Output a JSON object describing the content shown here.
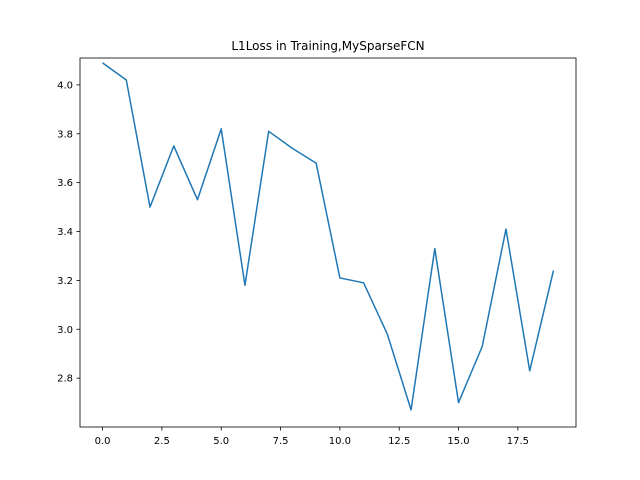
{
  "chart_data": {
    "type": "line",
    "title": "L1Loss in Training,MySparseFCN",
    "xlabel": "",
    "ylabel": "",
    "xlim": [
      -0.95,
      19.95
    ],
    "ylim": [
      2.6,
      4.11
    ],
    "xticks": [
      0.0,
      2.5,
      5.0,
      7.5,
      10.0,
      12.5,
      15.0,
      17.5
    ],
    "xtick_labels": [
      "0.0",
      "2.5",
      "5.0",
      "7.5",
      "10.0",
      "12.5",
      "15.0",
      "17.5"
    ],
    "yticks": [
      2.8,
      3.0,
      3.2,
      3.4,
      3.6,
      3.8,
      4.0
    ],
    "ytick_labels": [
      "2.8",
      "3.0",
      "3.2",
      "3.4",
      "3.6",
      "3.8",
      "4.0"
    ],
    "grid": false,
    "line_color": "#1f77b4",
    "series": [
      {
        "x": [
          0,
          1,
          2,
          3,
          4,
          5,
          6,
          7,
          8,
          9,
          10,
          11,
          12,
          13,
          14,
          15,
          16,
          17,
          18,
          19
        ],
        "values": [
          4.09,
          4.02,
          3.5,
          3.75,
          3.53,
          3.82,
          3.18,
          3.81,
          3.74,
          3.68,
          3.21,
          3.19,
          2.98,
          2.67,
          3.33,
          2.7,
          2.93,
          3.41,
          2.83,
          3.24
        ]
      }
    ]
  }
}
